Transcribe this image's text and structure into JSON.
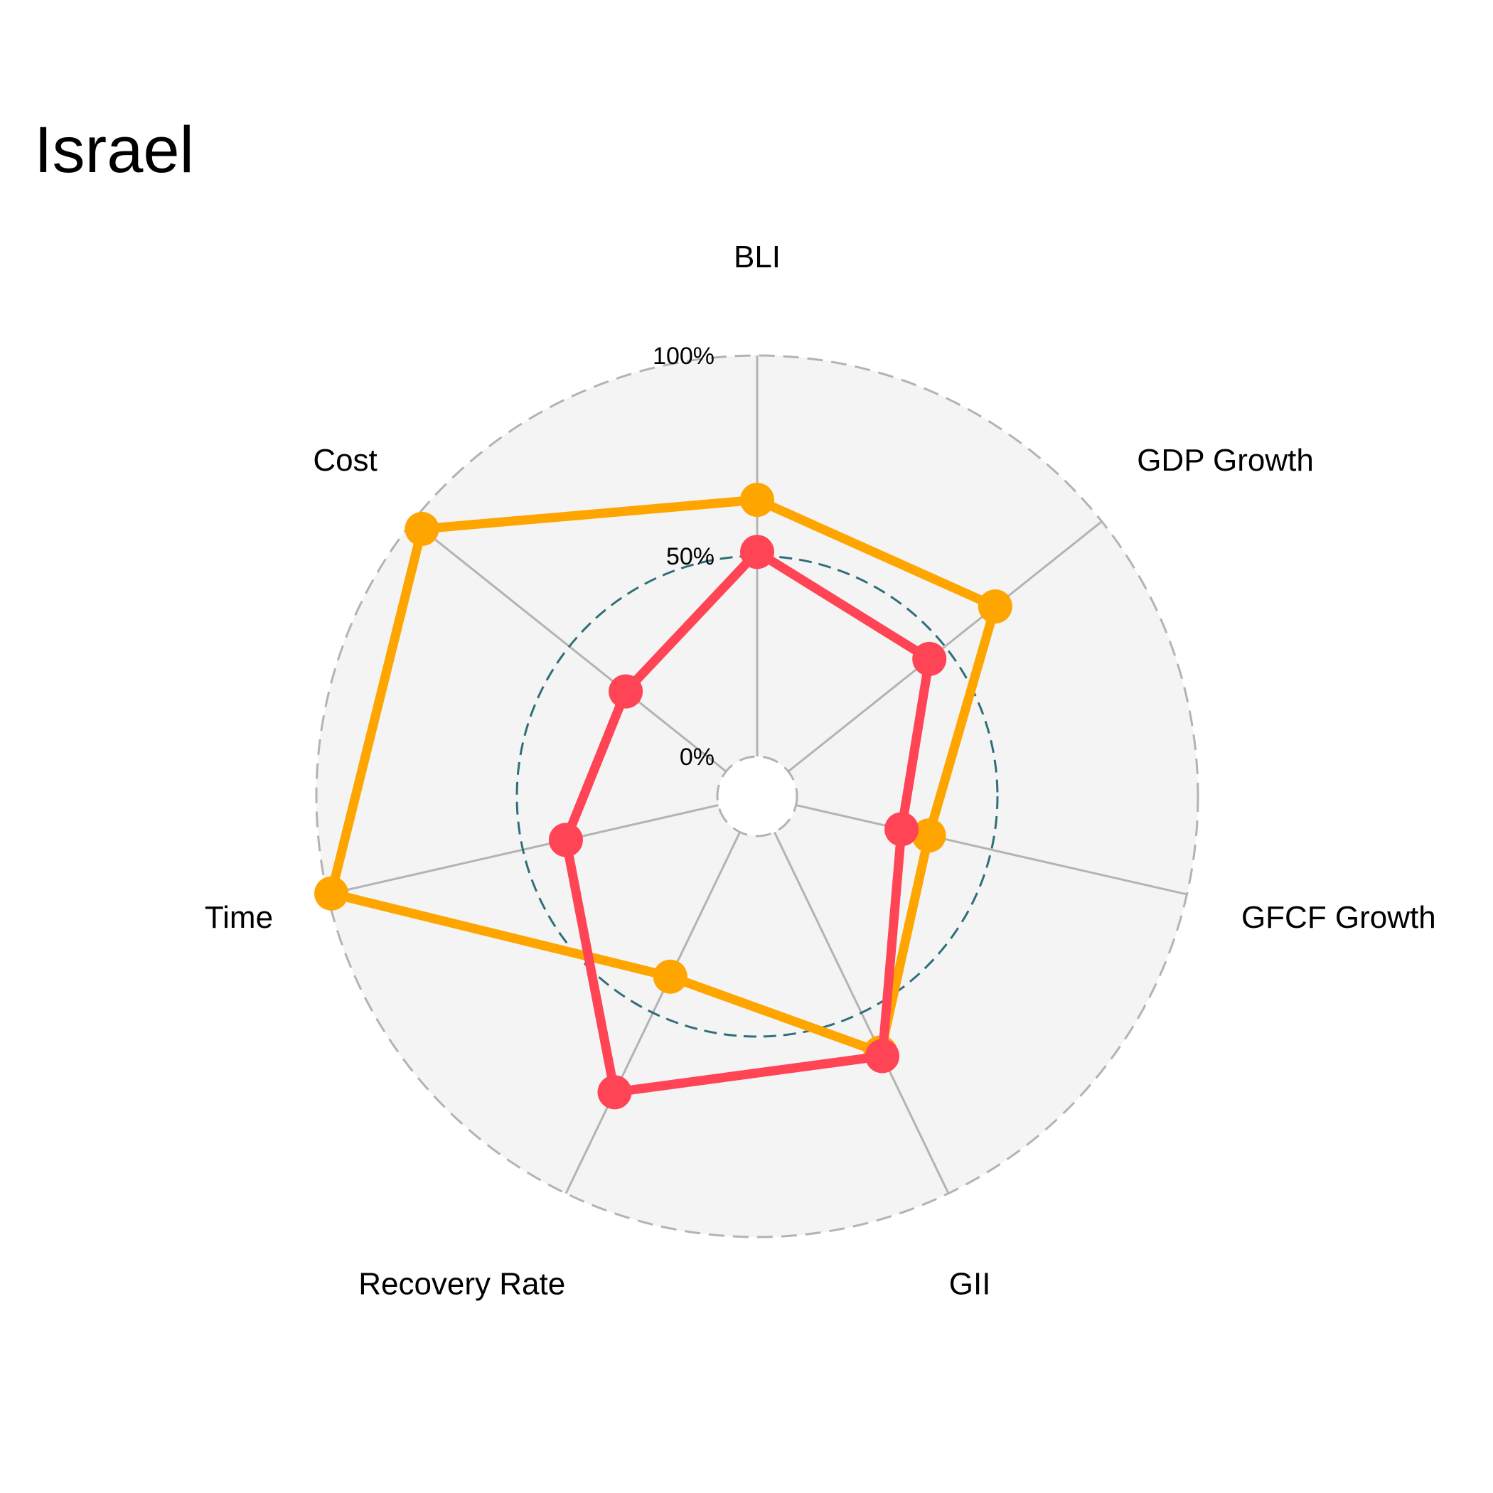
{
  "chart_data": {
    "type": "radar",
    "title": "Israel",
    "axes": [
      "BLI",
      "GDP Growth",
      "GFCF Growth",
      "GII",
      "Recovery Rate",
      "Time",
      "Cost"
    ],
    "radial_ticks": [
      {
        "value": 0,
        "label": "0%"
      },
      {
        "value": 50,
        "label": "50%"
      },
      {
        "value": 100,
        "label": "100%"
      }
    ],
    "rlim": [
      0,
      100
    ],
    "series": [
      {
        "values": [
          64,
          66,
          34,
          61,
          40,
          99,
          97
        ],
        "color": "#ffa500"
      },
      {
        "values": [
          51,
          45,
          27,
          62,
          72,
          39,
          32
        ],
        "color": "#ff4455"
      }
    ],
    "colors": {
      "panel": "#f4f4f4",
      "grid": "#b3b3b3",
      "mid_ring": "#2f6f7a"
    },
    "legend": "none"
  }
}
